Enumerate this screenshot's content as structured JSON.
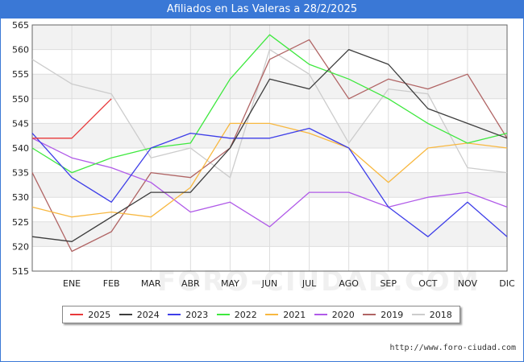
{
  "source_url": "http://www.foro-ciudad.com",
  "watermark": "FORO-CIUDAD.COM",
  "chart_data": {
    "type": "line",
    "title": "Afiliados en Las Valeras a 28/2/2025",
    "xlabel": "",
    "ylabel": "",
    "categories": [
      "",
      "ENE",
      "FEB",
      "MAR",
      "ABR",
      "MAY",
      "JUN",
      "JUL",
      "AGO",
      "SEP",
      "OCT",
      "NOV",
      "DIC"
    ],
    "ylim": [
      515,
      565
    ],
    "yticks": [
      515,
      520,
      525,
      530,
      535,
      540,
      545,
      550,
      555,
      560,
      565
    ],
    "grid": true,
    "legend_position": "bottom",
    "series": [
      {
        "name": "2025",
        "color": "#e8383a",
        "values": [
          542,
          542,
          550,
          null,
          null,
          null,
          null,
          null,
          null,
          null,
          null,
          null,
          null
        ]
      },
      {
        "name": "2024",
        "color": "#3d3d3d",
        "values": [
          522,
          521,
          526,
          531,
          531,
          540,
          554,
          552,
          560,
          557,
          548,
          545,
          542
        ]
      },
      {
        "name": "2023",
        "color": "#3e3ee8",
        "values": [
          543,
          534,
          529,
          540,
          543,
          542,
          542,
          544,
          540,
          528,
          522,
          529,
          522
        ]
      },
      {
        "name": "2022",
        "color": "#3ee83e",
        "values": [
          540,
          535,
          538,
          540,
          541,
          554,
          563,
          557,
          554,
          550,
          545,
          541,
          543
        ]
      },
      {
        "name": "2021",
        "color": "#f8b840",
        "values": [
          528,
          526,
          527,
          526,
          532,
          545,
          545,
          543,
          540,
          533,
          540,
          541,
          540
        ]
      },
      {
        "name": "2020",
        "color": "#b05ae8",
        "values": [
          542,
          538,
          536,
          533,
          527,
          529,
          524,
          531,
          531,
          528,
          530,
          531,
          528
        ]
      },
      {
        "name": "2019",
        "color": "#b06464",
        "values": [
          535,
          519,
          523,
          535,
          534,
          540,
          558,
          562,
          550,
          554,
          552,
          555,
          542
        ]
      },
      {
        "name": "2018",
        "color": "#cccccc",
        "values": [
          558,
          553,
          551,
          538,
          540,
          534,
          560,
          555,
          541,
          552,
          551,
          536,
          535
        ]
      }
    ]
  }
}
